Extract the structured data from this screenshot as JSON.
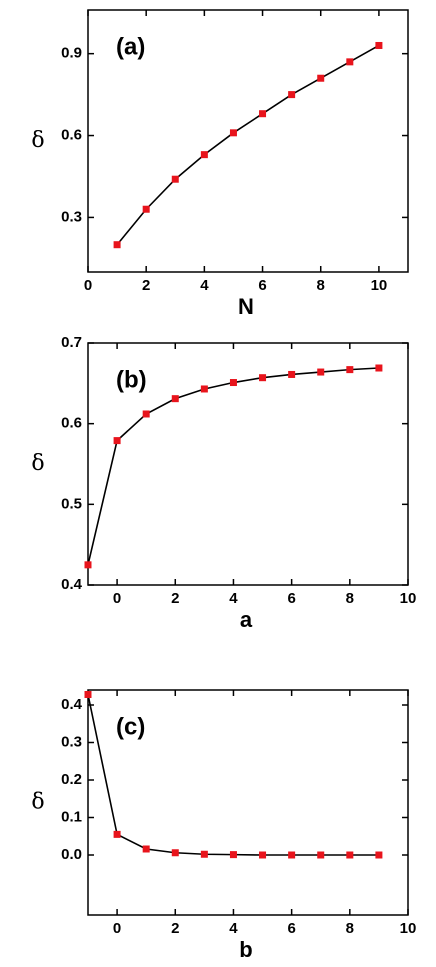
{
  "chart_data": [
    {
      "type": "line",
      "annotation": "(a)",
      "xlabel": "N",
      "ylabel": "δ",
      "x": [
        1,
        2,
        3,
        4,
        5,
        6,
        7,
        8,
        9,
        10
      ],
      "series": [
        {
          "color": "#e8141c",
          "values": [
            0.2,
            0.33,
            0.44,
            0.53,
            0.61,
            0.68,
            0.75,
            0.81,
            0.87,
            0.93
          ]
        }
      ],
      "xlim": [
        0,
        11
      ],
      "xticks": [
        0,
        2,
        4,
        6,
        8,
        10
      ],
      "ylim": [
        0.1,
        1.06
      ],
      "yticks": [
        0.3,
        0.6,
        0.9
      ]
    },
    {
      "type": "line",
      "annotation": "(b)",
      "xlabel": "a",
      "ylabel": "δ",
      "x": [
        -1,
        0,
        1,
        2,
        3,
        4,
        5,
        6,
        7,
        8,
        9
      ],
      "series": [
        {
          "color": "#e8141c",
          "values": [
            0.425,
            0.579,
            0.612,
            0.631,
            0.643,
            0.651,
            0.657,
            0.661,
            0.664,
            0.667,
            0.669
          ]
        }
      ],
      "xlim": [
        -1,
        10
      ],
      "xticks": [
        0,
        2,
        4,
        6,
        8,
        10
      ],
      "ylim": [
        0.4,
        0.7
      ],
      "yticks": [
        0.4,
        0.5,
        0.6,
        0.7
      ]
    },
    {
      "type": "line",
      "annotation": "(c)",
      "xlabel": "b",
      "ylabel": "δ",
      "x": [
        -1,
        0,
        1,
        2,
        3,
        4,
        5,
        6,
        7,
        8,
        9
      ],
      "series": [
        {
          "color": "#e8141c",
          "values": [
            0.428,
            0.055,
            0.016,
            0.006,
            0.002,
            0.001,
            0,
            0,
            0,
            0,
            0
          ]
        }
      ],
      "xlim": [
        -1,
        10
      ],
      "xticks": [
        0,
        2,
        4,
        6,
        8,
        10
      ],
      "ylim": [
        -0.16,
        0.44
      ],
      "yticks": [
        {
          "value": 0,
          "label": "0.0"
        },
        0.1,
        0.2,
        0.3,
        0.4
      ]
    }
  ]
}
